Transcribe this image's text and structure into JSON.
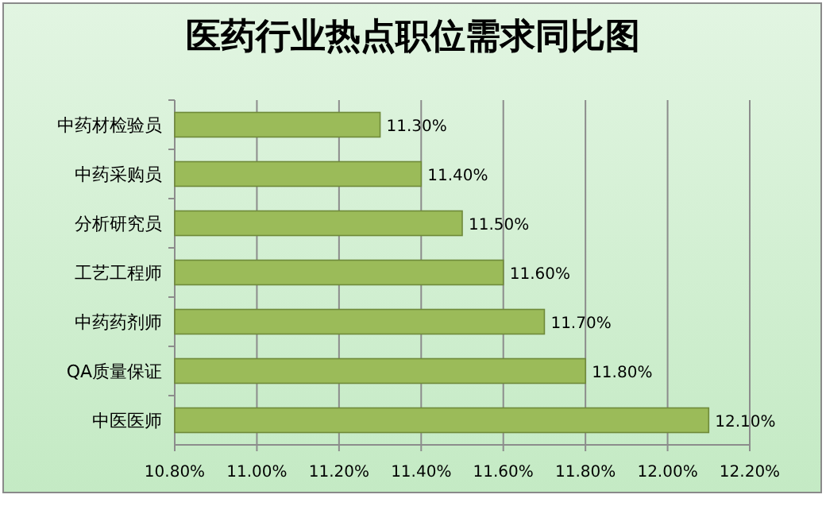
{
  "chart_data": {
    "type": "bar",
    "orientation": "horizontal",
    "title": "医药行业热点职位需求同比图",
    "categories": [
      "中药材检验员",
      "中药采购员",
      "分析研究员",
      "工艺工程师",
      "中药药剂师",
      "QA质量保证",
      "中医医师"
    ],
    "values": [
      11.3,
      11.4,
      11.5,
      11.6,
      11.7,
      11.8,
      12.1
    ],
    "value_labels": [
      "11.30%",
      "11.40%",
      "11.50%",
      "11.60%",
      "11.70%",
      "11.80%",
      "12.10%"
    ],
    "color": "#9bbb59",
    "xlim": [
      10.8,
      12.2
    ],
    "xticks": [
      {
        "value": 10.8,
        "label": "10.80%"
      },
      {
        "value": 11.0,
        "label": "11.00%"
      },
      {
        "value": 11.2,
        "label": "11.20%"
      },
      {
        "value": 11.4,
        "label": "11.40%"
      },
      {
        "value": 11.6,
        "label": "11.60%"
      },
      {
        "value": 11.8,
        "label": "11.80%"
      },
      {
        "value": 12.0,
        "label": "12.00%"
      },
      {
        "value": 12.2,
        "label": "12.20%"
      }
    ],
    "grid": "x"
  }
}
